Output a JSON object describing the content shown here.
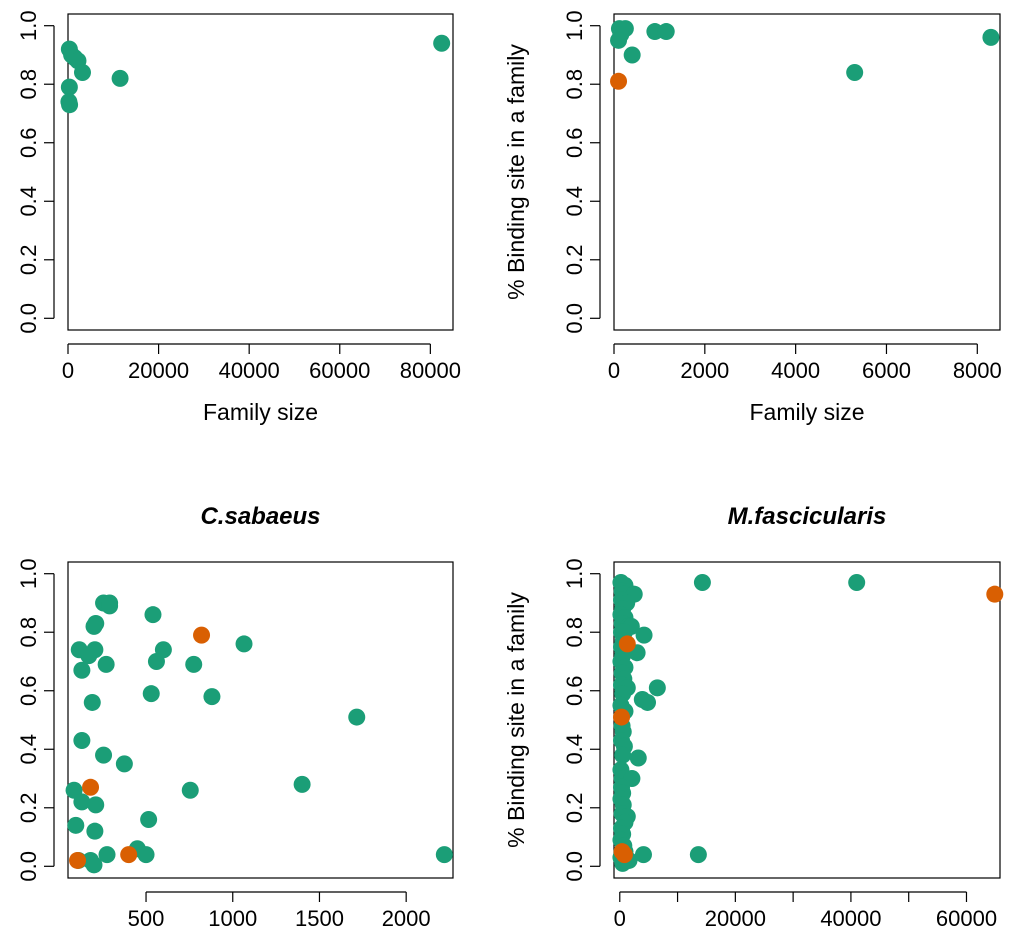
{
  "colors": {
    "green": "#1b9e77",
    "orange": "#d95f02"
  },
  "chart_data": [
    {
      "type": "scatter",
      "title": "",
      "xlabel": "Family size",
      "ylabel": "",
      "xlim": [
        0,
        85000
      ],
      "ylim": [
        0,
        1
      ],
      "xticks": [
        0,
        20000,
        40000,
        60000,
        80000
      ],
      "yticks": [
        0.0,
        0.2,
        0.4,
        0.6,
        0.8,
        1.0
      ],
      "xtick_labels": [
        "0",
        "20000",
        "40000",
        "60000",
        "80000"
      ],
      "ytick_labels": [
        "0.0",
        "0.2",
        "0.4",
        "0.6",
        "0.8",
        "1.0"
      ],
      "series": [
        {
          "name": "green",
          "color": "#1b9e77",
          "points": [
            [
              300,
              0.92
            ],
            [
              800,
              0.9
            ],
            [
              1500,
              0.89
            ],
            [
              2200,
              0.88
            ],
            [
              3200,
              0.84
            ],
            [
              11500,
              0.82
            ],
            [
              300,
              0.79
            ],
            [
              200,
              0.74
            ],
            [
              350,
              0.73
            ],
            [
              82500,
              0.94
            ]
          ]
        },
        {
          "name": "orange",
          "color": "#d95f02",
          "points": []
        }
      ]
    },
    {
      "type": "scatter",
      "title": "",
      "xlabel": "Family size",
      "ylabel": "% Binding site in a family",
      "xlim": [
        0,
        8500
      ],
      "ylim": [
        0,
        1
      ],
      "xticks": [
        0,
        2000,
        4000,
        6000,
        8000
      ],
      "yticks": [
        0.0,
        0.2,
        0.4,
        0.6,
        0.8,
        1.0
      ],
      "xtick_labels": [
        "0",
        "2000",
        "4000",
        "6000",
        "8000"
      ],
      "ytick_labels": [
        "0.0",
        "0.2",
        "0.4",
        "0.6",
        "0.8",
        "1.0"
      ],
      "series": [
        {
          "name": "green",
          "color": "#1b9e77",
          "points": [
            [
              120,
              0.99
            ],
            [
              250,
              0.99
            ],
            [
              150,
              0.97
            ],
            [
              100,
              0.95
            ],
            [
              900,
              0.98
            ],
            [
              1150,
              0.98
            ],
            [
              400,
              0.9
            ],
            [
              5300,
              0.84
            ],
            [
              8300,
              0.96
            ]
          ]
        },
        {
          "name": "orange",
          "color": "#d95f02",
          "points": [
            [
              100,
              0.81
            ]
          ]
        }
      ]
    },
    {
      "type": "scatter",
      "title": "C.sabaeus",
      "xlabel": "",
      "ylabel": "",
      "xlim": [
        50,
        2270
      ],
      "ylim": [
        0,
        1
      ],
      "xticks": [
        500,
        1000,
        1500,
        2000
      ],
      "yticks": [
        0.0,
        0.2,
        0.4,
        0.6,
        0.8,
        1.0
      ],
      "xtick_labels": [
        "500",
        "1000",
        "1500",
        "2000"
      ],
      "ytick_labels": [
        "0.0",
        "0.2",
        "0.4",
        "0.6",
        "0.8",
        "1.0"
      ],
      "series": [
        {
          "name": "green",
          "color": "#1b9e77",
          "points": [
            [
              255,
              0.9
            ],
            [
              290,
              0.9
            ],
            [
              290,
              0.89
            ],
            [
              540,
              0.86
            ],
            [
              210,
              0.83
            ],
            [
              200,
              0.82
            ],
            [
              115,
              0.74
            ],
            [
              205,
              0.74
            ],
            [
              600,
              0.74
            ],
            [
              1065,
              0.76
            ],
            [
              170,
              0.72
            ],
            [
              560,
              0.7
            ],
            [
              270,
              0.69
            ],
            [
              775,
              0.69
            ],
            [
              130,
              0.67
            ],
            [
              530,
              0.59
            ],
            [
              880,
              0.58
            ],
            [
              190,
              0.56
            ],
            [
              1715,
              0.51
            ],
            [
              130,
              0.43
            ],
            [
              255,
              0.38
            ],
            [
              375,
              0.35
            ],
            [
              1400,
              0.28
            ],
            [
              85,
              0.26
            ],
            [
              755,
              0.26
            ],
            [
              130,
              0.22
            ],
            [
              210,
              0.21
            ],
            [
              515,
              0.16
            ],
            [
              95,
              0.14
            ],
            [
              205,
              0.12
            ],
            [
              110,
              0.02
            ],
            [
              180,
              0.02
            ],
            [
              275,
              0.04
            ],
            [
              450,
              0.06
            ],
            [
              500,
              0.04
            ],
            [
              200,
              0.005
            ],
            [
              2220,
              0.04
            ]
          ]
        },
        {
          "name": "orange",
          "color": "#d95f02",
          "points": [
            [
              820,
              0.79
            ],
            [
              180,
              0.27
            ],
            [
              105,
              0.02
            ],
            [
              400,
              0.04
            ]
          ]
        }
      ]
    },
    {
      "type": "scatter",
      "title": "M.fascicularis",
      "xlabel": "",
      "ylabel": "% Binding site in a family",
      "xlim": [
        -1000,
        65800
      ],
      "ylim": [
        0,
        1
      ],
      "xticks": [
        0,
        10000,
        20000,
        30000,
        40000,
        50000,
        60000
      ],
      "yticks": [
        0.0,
        0.2,
        0.4,
        0.6,
        0.8,
        1.0
      ],
      "xtick_labels": [
        "0",
        "",
        "20000",
        "",
        "40000",
        "",
        "60000"
      ],
      "ytick_labels": [
        "0.0",
        "0.2",
        "0.4",
        "0.6",
        "0.8",
        "1.0"
      ],
      "series": [
        {
          "name": "green",
          "color": "#1b9e77",
          "points": [
            [
              200,
              0.97
            ],
            [
              900,
              0.96
            ],
            [
              400,
              0.94
            ],
            [
              700,
              0.93
            ],
            [
              2500,
              0.93
            ],
            [
              300,
              0.91
            ],
            [
              1200,
              0.9
            ],
            [
              500,
              0.88
            ],
            [
              200,
              0.86
            ],
            [
              900,
              0.85
            ],
            [
              400,
              0.83
            ],
            [
              1500,
              0.82
            ],
            [
              2000,
              0.82
            ],
            [
              300,
              0.8
            ],
            [
              800,
              0.8
            ],
            [
              4200,
              0.79
            ],
            [
              600,
              0.77
            ],
            [
              300,
              0.75
            ],
            [
              1100,
              0.74
            ],
            [
              3000,
              0.73
            ],
            [
              500,
              0.72
            ],
            [
              200,
              0.7
            ],
            [
              900,
              0.68
            ],
            [
              400,
              0.66
            ],
            [
              700,
              0.64
            ],
            [
              300,
              0.62
            ],
            [
              1300,
              0.61
            ],
            [
              6500,
              0.61
            ],
            [
              500,
              0.59
            ],
            [
              3900,
              0.57
            ],
            [
              4800,
              0.56
            ],
            [
              200,
              0.55
            ],
            [
              900,
              0.53
            ],
            [
              400,
              0.48
            ],
            [
              600,
              0.46
            ],
            [
              300,
              0.43
            ],
            [
              800,
              0.41
            ],
            [
              500,
              0.38
            ],
            [
              3200,
              0.37
            ],
            [
              200,
              0.33
            ],
            [
              400,
              0.3
            ],
            [
              700,
              0.3
            ],
            [
              2100,
              0.3
            ],
            [
              300,
              0.27
            ],
            [
              500,
              0.25
            ],
            [
              200,
              0.23
            ],
            [
              600,
              0.21
            ],
            [
              400,
              0.18
            ],
            [
              1300,
              0.17
            ],
            [
              900,
              0.15
            ],
            [
              300,
              0.13
            ],
            [
              500,
              0.11
            ],
            [
              200,
              0.09
            ],
            [
              700,
              0.07
            ],
            [
              400,
              0.05
            ],
            [
              900,
              0.05
            ],
            [
              200,
              0.03
            ],
            [
              1600,
              0.02
            ],
            [
              4100,
              0.04
            ],
            [
              500,
              0.01
            ],
            [
              14300,
              0.97
            ],
            [
              41000,
              0.97
            ],
            [
              13600,
              0.04
            ]
          ]
        },
        {
          "name": "orange",
          "color": "#d95f02",
          "points": [
            [
              64900,
              0.93
            ],
            [
              1300,
              0.76
            ],
            [
              300,
              0.51
            ],
            [
              400,
              0.05
            ],
            [
              800,
              0.04
            ]
          ]
        }
      ]
    }
  ]
}
